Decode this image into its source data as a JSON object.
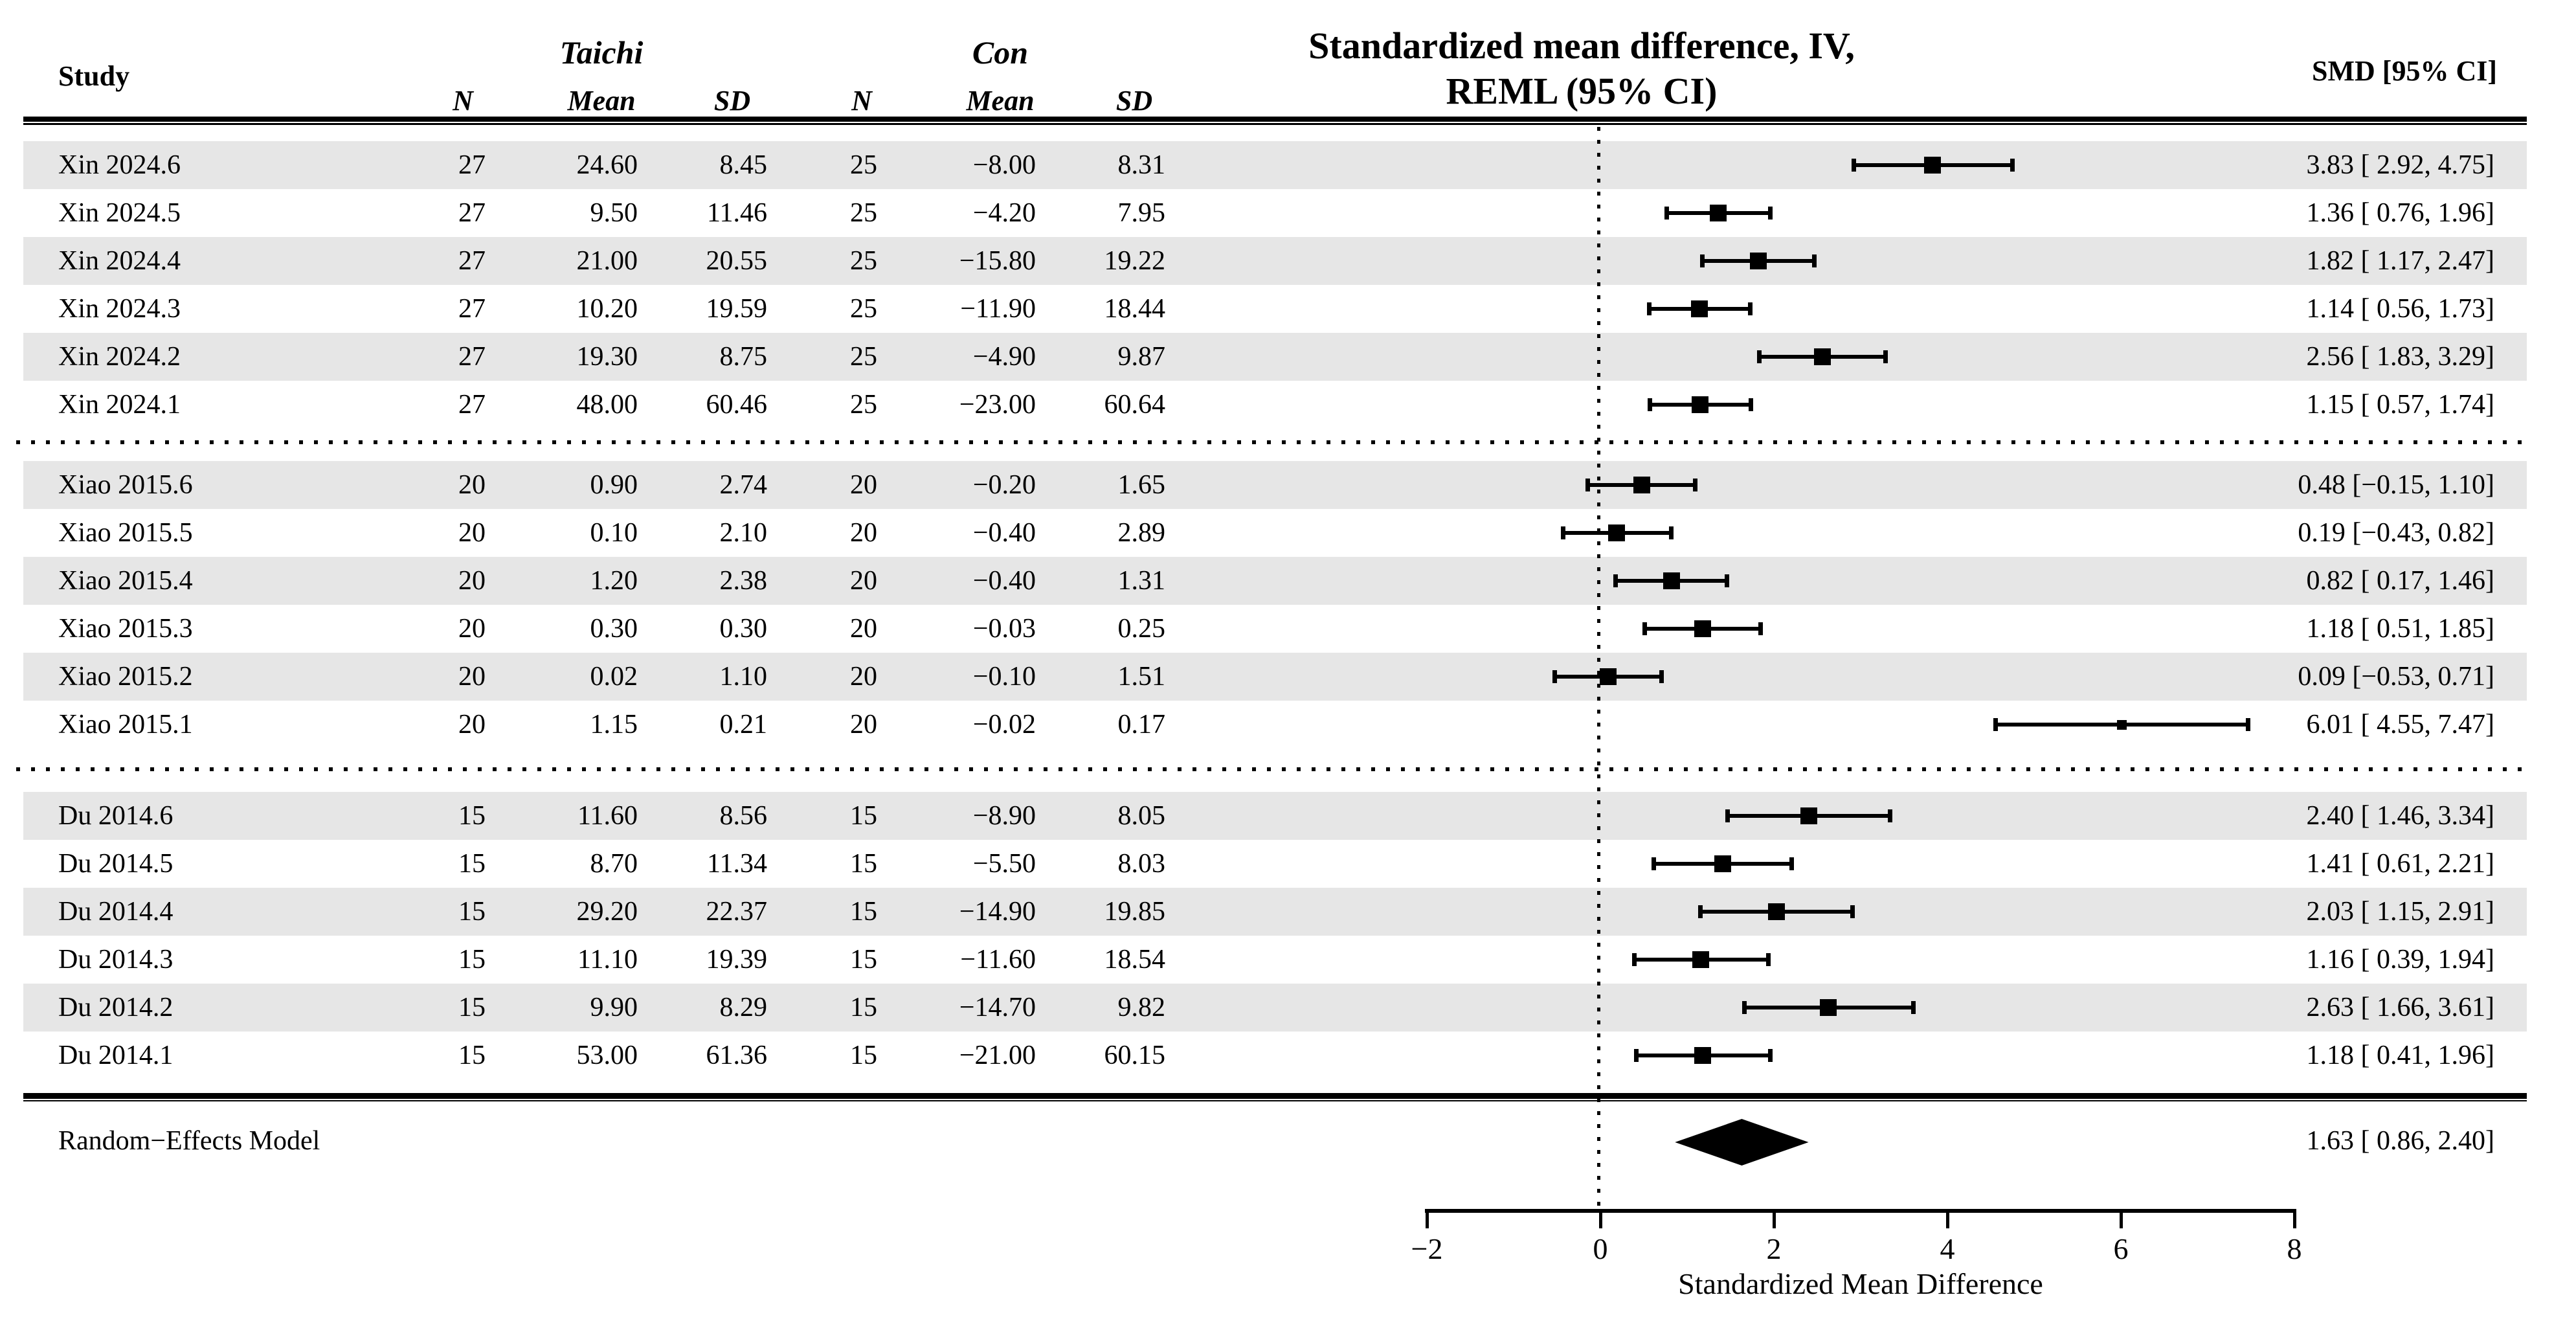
{
  "header": {
    "study_col": "Study",
    "group1": "Taichi",
    "group2": "Con",
    "sub_n": "N",
    "sub_mean": "Mean",
    "sub_sd": "SD",
    "plot_title_line1": "Standardized mean difference, IV,",
    "plot_title_line2": "REML (95% CI)",
    "smd_col": "SMD [95% CI]"
  },
  "colors": {
    "band": "#e6e6e6",
    "ink": "#000000"
  },
  "chart_data": {
    "type": "forest",
    "x_axis": {
      "title": "Standardized Mean Difference",
      "ticks": [
        -2,
        0,
        2,
        4,
        6,
        8
      ],
      "tick_labels": [
        "−2",
        "0",
        "2",
        "4",
        "6",
        "8"
      ],
      "range": [
        -2,
        8
      ],
      "zero_reference_line": 0
    },
    "sections": [
      {
        "rows": [
          {
            "study": "Xin 2024.6",
            "n_t": "27",
            "mean_t": "24.60",
            "sd_t": "8.45",
            "n_c": "25",
            "mean_c": "−8.00",
            "sd_c": "8.31",
            "est": 3.83,
            "lo": 2.92,
            "hi": 4.75,
            "ci_label": "3.83 [ 2.92, 4.75]",
            "shaded": true,
            "marker_px": 26
          },
          {
            "study": "Xin 2024.5",
            "n_t": "27",
            "mean_t": "9.50",
            "sd_t": "11.46",
            "n_c": "25",
            "mean_c": "−4.20",
            "sd_c": "7.95",
            "est": 1.36,
            "lo": 0.76,
            "hi": 1.96,
            "ci_label": "1.36 [ 0.76, 1.96]",
            "shaded": false,
            "marker_px": 26
          },
          {
            "study": "Xin 2024.4",
            "n_t": "27",
            "mean_t": "21.00",
            "sd_t": "20.55",
            "n_c": "25",
            "mean_c": "−15.80",
            "sd_c": "19.22",
            "est": 1.82,
            "lo": 1.17,
            "hi": 2.47,
            "ci_label": "1.82 [ 1.17, 2.47]",
            "shaded": true,
            "marker_px": 26
          },
          {
            "study": "Xin 2024.3",
            "n_t": "27",
            "mean_t": "10.20",
            "sd_t": "19.59",
            "n_c": "25",
            "mean_c": "−11.90",
            "sd_c": "18.44",
            "est": 1.14,
            "lo": 0.56,
            "hi": 1.73,
            "ci_label": "1.14 [ 0.56, 1.73]",
            "shaded": false,
            "marker_px": 26
          },
          {
            "study": "Xin 2024.2",
            "n_t": "27",
            "mean_t": "19.30",
            "sd_t": "8.75",
            "n_c": "25",
            "mean_c": "−4.90",
            "sd_c": "9.87",
            "est": 2.56,
            "lo": 1.83,
            "hi": 3.29,
            "ci_label": "2.56 [ 1.83, 3.29]",
            "shaded": true,
            "marker_px": 26
          },
          {
            "study": "Xin 2024.1",
            "n_t": "27",
            "mean_t": "48.00",
            "sd_t": "60.46",
            "n_c": "25",
            "mean_c": "−23.00",
            "sd_c": "60.64",
            "est": 1.15,
            "lo": 0.57,
            "hi": 1.74,
            "ci_label": "1.15 [ 0.57, 1.74]",
            "shaded": false,
            "marker_px": 26
          }
        ]
      },
      {
        "rows": [
          {
            "study": "Xiao 2015.6",
            "n_t": "20",
            "mean_t": "0.90",
            "sd_t": "2.74",
            "n_c": "20",
            "mean_c": "−0.20",
            "sd_c": "1.65",
            "est": 0.48,
            "lo": -0.15,
            "hi": 1.1,
            "ci_label": "0.48 [−0.15, 1.10]",
            "shaded": true,
            "marker_px": 26
          },
          {
            "study": "Xiao 2015.5",
            "n_t": "20",
            "mean_t": "0.10",
            "sd_t": "2.10",
            "n_c": "20",
            "mean_c": "−0.40",
            "sd_c": "2.89",
            "est": 0.19,
            "lo": -0.43,
            "hi": 0.82,
            "ci_label": "0.19 [−0.43, 0.82]",
            "shaded": false,
            "marker_px": 26
          },
          {
            "study": "Xiao 2015.4",
            "n_t": "20",
            "mean_t": "1.20",
            "sd_t": "2.38",
            "n_c": "20",
            "mean_c": "−0.40",
            "sd_c": "1.31",
            "est": 0.82,
            "lo": 0.17,
            "hi": 1.46,
            "ci_label": "0.82 [ 0.17, 1.46]",
            "shaded": true,
            "marker_px": 26
          },
          {
            "study": "Xiao 2015.3",
            "n_t": "20",
            "mean_t": "0.30",
            "sd_t": "0.30",
            "n_c": "20",
            "mean_c": "−0.03",
            "sd_c": "0.25",
            "est": 1.18,
            "lo": 0.51,
            "hi": 1.85,
            "ci_label": "1.18 [ 0.51, 1.85]",
            "shaded": false,
            "marker_px": 26
          },
          {
            "study": "Xiao 2015.2",
            "n_t": "20",
            "mean_t": "0.02",
            "sd_t": "1.10",
            "n_c": "20",
            "mean_c": "−0.10",
            "sd_c": "1.51",
            "est": 0.09,
            "lo": -0.53,
            "hi": 0.71,
            "ci_label": "0.09 [−0.53, 0.71]",
            "shaded": true,
            "marker_px": 26
          },
          {
            "study": "Xiao 2015.1",
            "n_t": "20",
            "mean_t": "1.15",
            "sd_t": "0.21",
            "n_c": "20",
            "mean_c": "−0.02",
            "sd_c": "0.17",
            "est": 6.01,
            "lo": 4.55,
            "hi": 7.47,
            "ci_label": "6.01 [ 4.55, 7.47]",
            "shaded": false,
            "marker_px": 15
          }
        ]
      },
      {
        "rows": [
          {
            "study": "Du 2014.6",
            "n_t": "15",
            "mean_t": "11.60",
            "sd_t": "8.56",
            "n_c": "15",
            "mean_c": "−8.90",
            "sd_c": "8.05",
            "est": 2.4,
            "lo": 1.46,
            "hi": 3.34,
            "ci_label": "2.40 [ 1.46, 3.34]",
            "shaded": true,
            "marker_px": 26
          },
          {
            "study": "Du 2014.5",
            "n_t": "15",
            "mean_t": "8.70",
            "sd_t": "11.34",
            "n_c": "15",
            "mean_c": "−5.50",
            "sd_c": "8.03",
            "est": 1.41,
            "lo": 0.61,
            "hi": 2.21,
            "ci_label": "1.41 [ 0.61, 2.21]",
            "shaded": false,
            "marker_px": 26
          },
          {
            "study": "Du 2014.4",
            "n_t": "15",
            "mean_t": "29.20",
            "sd_t": "22.37",
            "n_c": "15",
            "mean_c": "−14.90",
            "sd_c": "19.85",
            "est": 2.03,
            "lo": 1.15,
            "hi": 2.91,
            "ci_label": "2.03 [ 1.15, 2.91]",
            "shaded": true,
            "marker_px": 26
          },
          {
            "study": "Du 2014.3",
            "n_t": "15",
            "mean_t": "11.10",
            "sd_t": "19.39",
            "n_c": "15",
            "mean_c": "−11.60",
            "sd_c": "18.54",
            "est": 1.16,
            "lo": 0.39,
            "hi": 1.94,
            "ci_label": "1.16 [ 0.39, 1.94]",
            "shaded": false,
            "marker_px": 26
          },
          {
            "study": "Du 2014.2",
            "n_t": "15",
            "mean_t": "9.90",
            "sd_t": "8.29",
            "n_c": "15",
            "mean_c": "−14.70",
            "sd_c": "9.82",
            "est": 2.63,
            "lo": 1.66,
            "hi": 3.61,
            "ci_label": "2.63 [ 1.66, 3.61]",
            "shaded": true,
            "marker_px": 26
          },
          {
            "study": "Du 2014.1",
            "n_t": "15",
            "mean_t": "53.00",
            "sd_t": "61.36",
            "n_c": "15",
            "mean_c": "−21.00",
            "sd_c": "60.15",
            "est": 1.18,
            "lo": 0.41,
            "hi": 1.96,
            "ci_label": "1.18 [ 0.41, 1.96]",
            "shaded": false,
            "marker_px": 26
          }
        ]
      }
    ],
    "summary": {
      "label": "Random−Effects Model",
      "est": 1.63,
      "lo": 0.86,
      "hi": 2.4,
      "ci_label": "1.63 [ 0.86, 2.40]"
    }
  }
}
